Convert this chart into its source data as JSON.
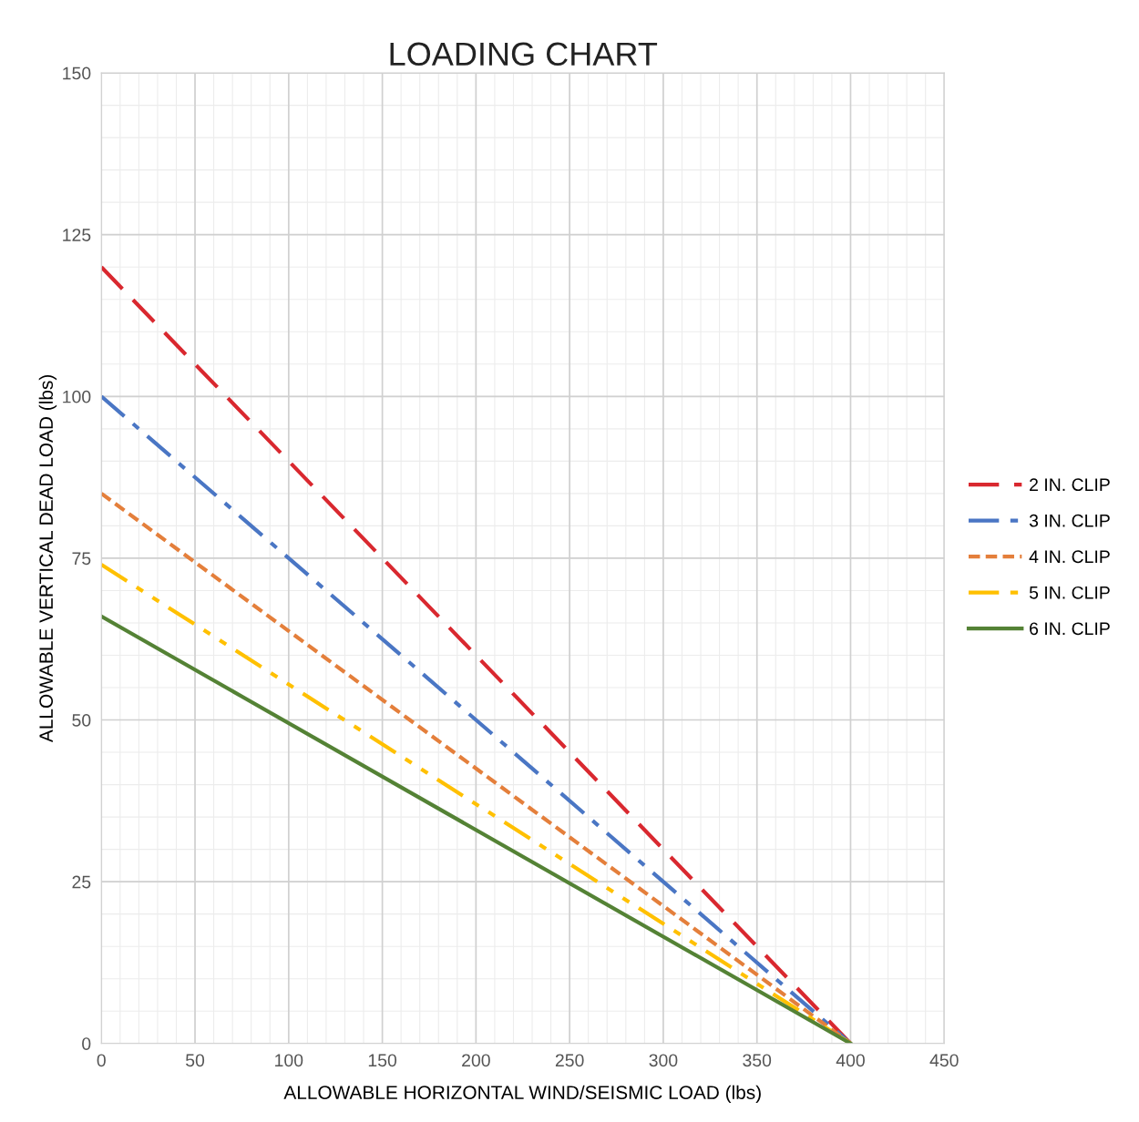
{
  "chart_data": {
    "type": "line",
    "title": "LOADING CHART",
    "xlabel": "ALLOWABLE HORIZONTAL WIND/SEISMIC LOAD (lbs)",
    "ylabel": "ALLOWABLE VERTICAL DEAD LOAD (lbs)",
    "xlim": [
      0,
      450
    ],
    "xticks": [
      0,
      50,
      100,
      150,
      200,
      250,
      300,
      350,
      400,
      450
    ],
    "ylim": [
      0,
      150
    ],
    "yticks": [
      0,
      25,
      50,
      75,
      100,
      125,
      150
    ],
    "grid": true,
    "legend": "right",
    "marker": "none",
    "x": [
      0,
      400
    ],
    "series": [
      {
        "name": "2 IN. CLIP",
        "color": "#d9282f",
        "line_style": "dashed",
        "values": [
          120,
          0
        ]
      },
      {
        "name": "3 IN. CLIP",
        "color": "#4a76c4",
        "line_style": "dashdot",
        "values": [
          100,
          0
        ]
      },
      {
        "name": "4 IN. CLIP",
        "color": "#e47f3b",
        "line_style": "dotted",
        "values": [
          85,
          0
        ]
      },
      {
        "name": "5 IN. CLIP",
        "color": "#ffc000",
        "line_style": "dashdotdot",
        "values": [
          74,
          0
        ]
      },
      {
        "name": "6 IN. CLIP",
        "color": "#548235",
        "line_style": "solid",
        "values": [
          66,
          0
        ]
      }
    ]
  }
}
